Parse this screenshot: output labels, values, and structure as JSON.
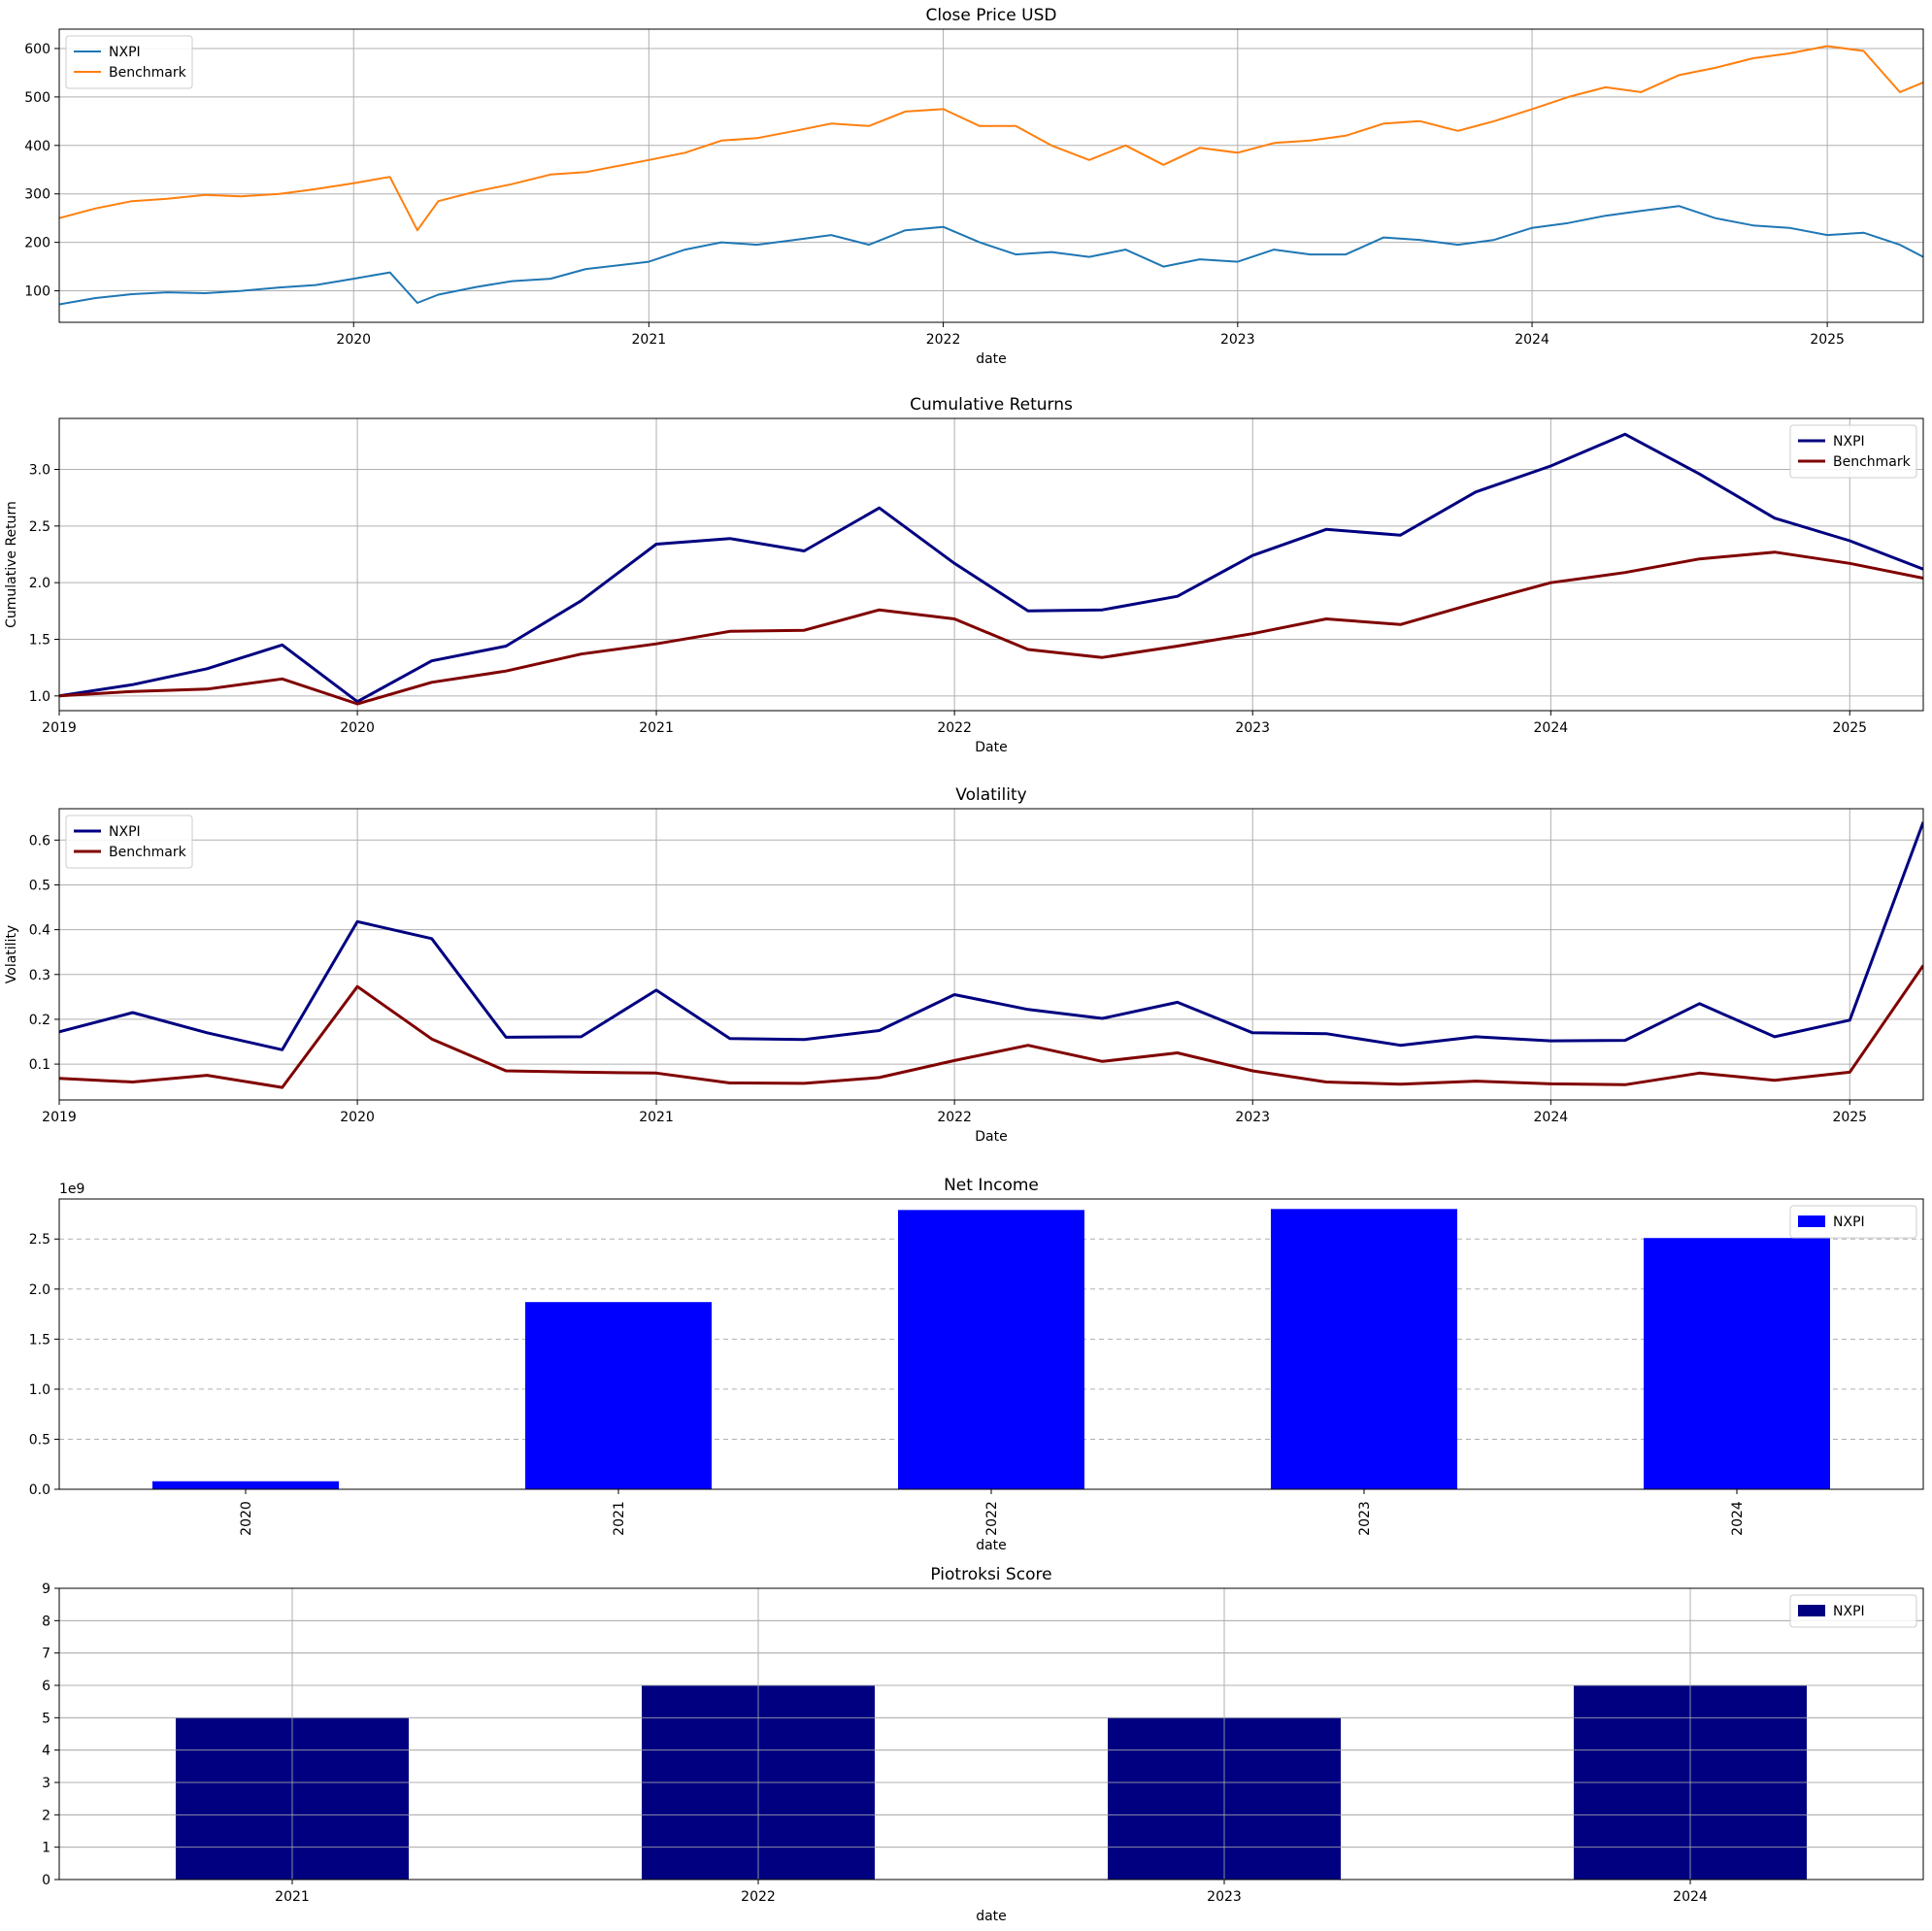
{
  "chart_data": [
    {
      "type": "line",
      "title": "Close Price USD",
      "xlabel": "date",
      "ylabel": "",
      "x_axis": "date",
      "xlim": [
        "2019-01-01",
        "2025-04-30"
      ],
      "ylim": [
        35,
        640
      ],
      "yticks": [
        100,
        200,
        300,
        400,
        500,
        600
      ],
      "xticks": [
        "2020",
        "2021",
        "2022",
        "2023",
        "2024",
        "2025"
      ],
      "grid": true,
      "legend": "top-left",
      "series": [
        {
          "name": "NXPI",
          "color": "#1f77b4",
          "x": [
            "2019-01-01",
            "2019-02-15",
            "2019-04-01",
            "2019-05-15",
            "2019-07-01",
            "2019-08-15",
            "2019-10-01",
            "2019-11-15",
            "2020-01-01",
            "2020-02-15",
            "2020-03-20",
            "2020-04-15",
            "2020-06-01",
            "2020-07-15",
            "2020-09-01",
            "2020-10-15",
            "2021-01-01",
            "2021-02-15",
            "2021-04-01",
            "2021-05-15",
            "2021-07-01",
            "2021-08-15",
            "2021-10-01",
            "2021-11-15",
            "2022-01-01",
            "2022-02-15",
            "2022-04-01",
            "2022-05-15",
            "2022-07-01",
            "2022-08-15",
            "2022-10-01",
            "2022-11-15",
            "2023-01-01",
            "2023-02-15",
            "2023-04-01",
            "2023-05-15",
            "2023-07-01",
            "2023-08-15",
            "2023-10-01",
            "2023-11-15",
            "2024-01-01",
            "2024-02-15",
            "2024-04-01",
            "2024-05-15",
            "2024-07-01",
            "2024-08-15",
            "2024-10-01",
            "2024-11-15",
            "2025-01-01",
            "2025-02-15",
            "2025-04-01",
            "2025-04-30"
          ],
          "values": [
            72,
            85,
            93,
            97,
            95,
            100,
            107,
            112,
            125,
            138,
            75,
            92,
            108,
            120,
            125,
            145,
            160,
            185,
            200,
            195,
            205,
            215,
            195,
            225,
            232,
            200,
            175,
            180,
            170,
            185,
            150,
            165,
            160,
            185,
            175,
            175,
            210,
            205,
            195,
            205,
            230,
            240,
            255,
            265,
            275,
            250,
            235,
            230,
            215,
            220,
            195,
            170
          ]
        },
        {
          "name": "Benchmark",
          "color": "#ff7f0e",
          "x": [
            "2019-01-01",
            "2019-02-15",
            "2019-04-01",
            "2019-05-15",
            "2019-07-01",
            "2019-08-15",
            "2019-10-01",
            "2019-11-15",
            "2020-01-01",
            "2020-02-15",
            "2020-03-20",
            "2020-04-15",
            "2020-06-01",
            "2020-07-15",
            "2020-09-01",
            "2020-10-15",
            "2021-01-01",
            "2021-02-15",
            "2021-04-01",
            "2021-05-15",
            "2021-07-01",
            "2021-08-15",
            "2021-10-01",
            "2021-11-15",
            "2022-01-01",
            "2022-02-15",
            "2022-04-01",
            "2022-05-15",
            "2022-07-01",
            "2022-08-15",
            "2022-10-01",
            "2022-11-15",
            "2023-01-01",
            "2023-02-15",
            "2023-04-01",
            "2023-05-15",
            "2023-07-01",
            "2023-08-15",
            "2023-10-01",
            "2023-11-15",
            "2024-01-01",
            "2024-02-15",
            "2024-04-01",
            "2024-05-15",
            "2024-07-01",
            "2024-08-15",
            "2024-10-01",
            "2024-11-15",
            "2025-01-01",
            "2025-02-15",
            "2025-04-01",
            "2025-04-30"
          ],
          "values": [
            250,
            270,
            285,
            290,
            298,
            295,
            300,
            310,
            322,
            335,
            225,
            285,
            305,
            320,
            340,
            345,
            370,
            385,
            410,
            415,
            430,
            445,
            440,
            470,
            475,
            440,
            440,
            400,
            370,
            400,
            360,
            395,
            385,
            405,
            410,
            420,
            445,
            450,
            430,
            450,
            475,
            500,
            520,
            510,
            545,
            560,
            580,
            590,
            605,
            595,
            510,
            530
          ]
        }
      ]
    },
    {
      "type": "line",
      "title": "Cumulative Returns",
      "xlabel": "Date",
      "ylabel": "Cumulative Return",
      "x_axis": "date",
      "xlim": [
        "2019-01-01",
        "2025-04-01"
      ],
      "ylim": [
        0.87,
        3.45
      ],
      "yticks": [
        1.0,
        1.5,
        2.0,
        2.5,
        3.0
      ],
      "xticks": [
        "2019",
        "2020",
        "2021",
        "2022",
        "2023",
        "2024",
        "2025"
      ],
      "grid": true,
      "legend": "top-right",
      "x": [
        "2019-01-01",
        "2019-04-01",
        "2019-07-01",
        "2019-10-01",
        "2020-01-01",
        "2020-04-01",
        "2020-07-01",
        "2020-10-01",
        "2021-01-01",
        "2021-04-01",
        "2021-07-01",
        "2021-10-01",
        "2022-01-01",
        "2022-04-01",
        "2022-07-01",
        "2022-10-01",
        "2023-01-01",
        "2023-04-01",
        "2023-07-01",
        "2023-10-01",
        "2024-01-01",
        "2024-04-01",
        "2024-07-01",
        "2024-10-01",
        "2025-01-01",
        "2025-04-01"
      ],
      "series": [
        {
          "name": "NXPI",
          "color": "#000080",
          "values": [
            1.0,
            1.1,
            1.24,
            1.45,
            0.95,
            1.31,
            1.44,
            1.84,
            2.34,
            2.39,
            2.28,
            2.66,
            2.17,
            1.75,
            1.76,
            1.88,
            2.24,
            2.47,
            2.42,
            2.8,
            3.03,
            3.31,
            2.96,
            2.57,
            2.37,
            2.12
          ]
        },
        {
          "name": "Benchmark",
          "color": "#800000",
          "values": [
            1.0,
            1.04,
            1.06,
            1.15,
            0.93,
            1.12,
            1.22,
            1.37,
            1.46,
            1.57,
            1.58,
            1.76,
            1.68,
            1.41,
            1.34,
            1.44,
            1.55,
            1.68,
            1.63,
            1.82,
            2.0,
            2.09,
            2.21,
            2.27,
            2.17,
            2.04
          ]
        }
      ]
    },
    {
      "type": "line",
      "title": "Volatility",
      "xlabel": "Date",
      "ylabel": "Volatility",
      "x_axis": "date",
      "xlim": [
        "2019-01-01",
        "2025-04-01"
      ],
      "ylim": [
        0.02,
        0.67
      ],
      "yticks": [
        0.1,
        0.2,
        0.3,
        0.4,
        0.5,
        0.6
      ],
      "xticks": [
        "2019",
        "2020",
        "2021",
        "2022",
        "2023",
        "2024",
        "2025"
      ],
      "grid": true,
      "legend": "top-left",
      "x": [
        "2019-01-01",
        "2019-04-01",
        "2019-07-01",
        "2019-10-01",
        "2020-01-01",
        "2020-04-01",
        "2020-07-01",
        "2020-10-01",
        "2021-01-01",
        "2021-04-01",
        "2021-07-01",
        "2021-10-01",
        "2022-01-01",
        "2022-04-01",
        "2022-07-01",
        "2022-10-01",
        "2023-01-01",
        "2023-04-01",
        "2023-07-01",
        "2023-10-01",
        "2024-01-01",
        "2024-04-01",
        "2024-07-01",
        "2024-10-01",
        "2025-01-01",
        "2025-04-01"
      ],
      "series": [
        {
          "name": "NXPI",
          "color": "#000080",
          "values": [
            0.172,
            0.215,
            0.17,
            0.132,
            0.418,
            0.38,
            0.16,
            0.161,
            0.265,
            0.157,
            0.155,
            0.175,
            0.255,
            0.222,
            0.202,
            0.238,
            0.17,
            0.168,
            0.142,
            0.161,
            0.152,
            0.153,
            0.235,
            0.161,
            0.198,
            0.64
          ]
        },
        {
          "name": "Benchmark",
          "color": "#800000",
          "values": [
            0.068,
            0.06,
            0.075,
            0.048,
            0.273,
            0.156,
            0.085,
            0.082,
            0.08,
            0.058,
            0.057,
            0.07,
            0.108,
            0.142,
            0.106,
            0.125,
            0.085,
            0.06,
            0.055,
            0.062,
            0.056,
            0.054,
            0.08,
            0.064,
            0.082,
            0.32
          ]
        }
      ]
    },
    {
      "type": "bar",
      "title": "Net Income",
      "xlabel": "date",
      "ylabel": "",
      "scale_label": "1e9",
      "ylim": [
        0,
        2.9
      ],
      "yticks": [
        0.0,
        0.5,
        1.0,
        1.5,
        2.0,
        2.5
      ],
      "grid": true,
      "legend": "top-right",
      "categories": [
        "2020",
        "2021",
        "2022",
        "2023",
        "2024"
      ],
      "series": [
        {
          "name": "NXPI",
          "color": "#0000ff",
          "values": [
            0.08,
            1.87,
            2.79,
            2.8,
            2.51
          ]
        }
      ]
    },
    {
      "type": "bar",
      "title": "Piotroksi Score",
      "xlabel": "date",
      "ylabel": "",
      "ylim": [
        0,
        9
      ],
      "yticks": [
        0,
        1,
        2,
        3,
        4,
        5,
        6,
        7,
        8,
        9
      ],
      "grid": true,
      "legend": "top-right",
      "categories": [
        "2021",
        "2022",
        "2023",
        "2024"
      ],
      "series": [
        {
          "name": "NXPI",
          "color": "#000080",
          "values": [
            5,
            6,
            5,
            6
          ]
        }
      ]
    }
  ]
}
